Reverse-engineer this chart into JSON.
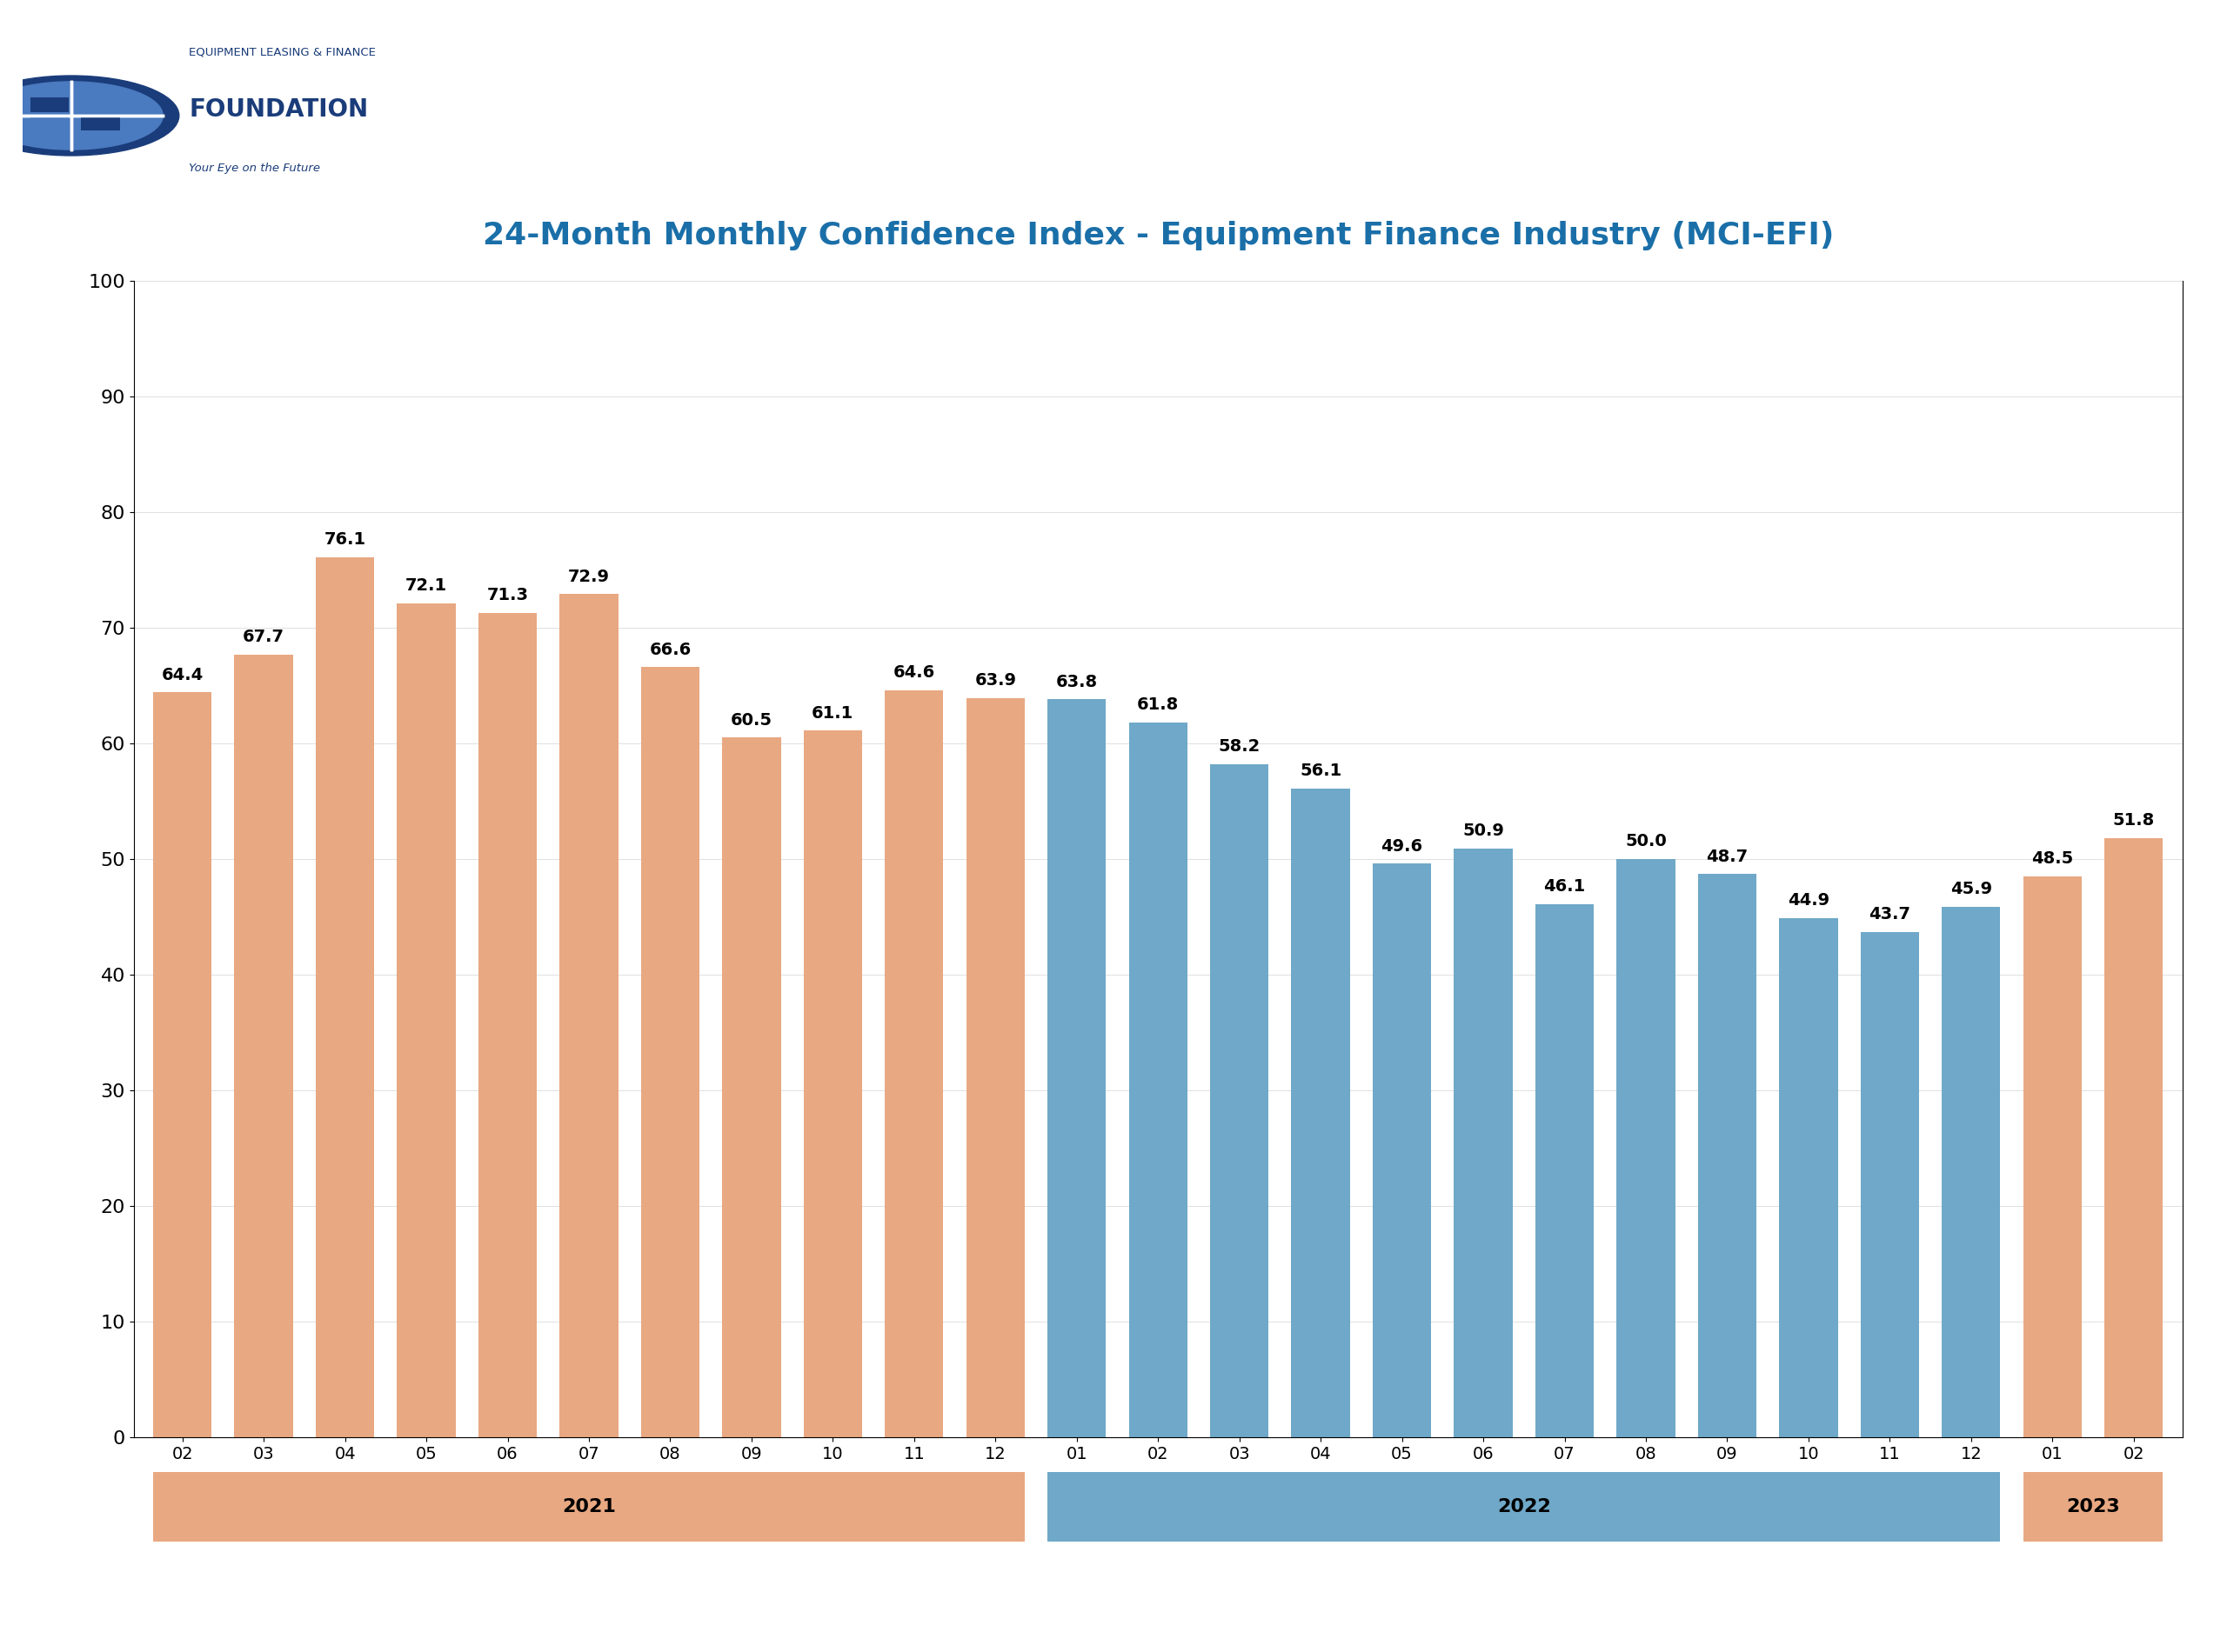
{
  "categories": [
    "02",
    "03",
    "04",
    "05",
    "06",
    "07",
    "08",
    "09",
    "10",
    "11",
    "12",
    "01",
    "02",
    "03",
    "04",
    "05",
    "06",
    "07",
    "08",
    "09",
    "10",
    "11",
    "12",
    "01",
    "02"
  ],
  "values": [
    64.4,
    67.7,
    76.1,
    72.1,
    71.3,
    72.9,
    66.6,
    60.5,
    61.1,
    64.6,
    63.9,
    63.8,
    61.8,
    58.2,
    56.1,
    49.6,
    50.9,
    46.1,
    50.0,
    48.7,
    44.9,
    43.7,
    45.9,
    48.5,
    51.8
  ],
  "bar_colors_salmon": "#E8A882",
  "bar_colors_blue": "#6FA8C8",
  "title": "24-Month Monthly Confidence Index - Equipment Finance Industry (MCI-EFI)",
  "title_color": "#1a6fa8",
  "ylim": [
    0,
    100
  ],
  "yticks": [
    0,
    10,
    20,
    30,
    40,
    50,
    60,
    70,
    80,
    90,
    100
  ],
  "background_color": "#ffffff",
  "salmon_indices": [
    0,
    1,
    2,
    3,
    4,
    5,
    6,
    7,
    8,
    9,
    10,
    23,
    24
  ],
  "blue_indices": [
    11,
    12,
    13,
    14,
    15,
    16,
    17,
    18,
    19,
    20,
    21,
    22
  ],
  "year_info": [
    {
      "label": "2021",
      "start": 0,
      "end": 10,
      "color": "#E8A882"
    },
    {
      "label": "2022",
      "start": 11,
      "end": 22,
      "color": "#6FA8C8"
    },
    {
      "label": "2023",
      "start": 23,
      "end": 24,
      "color": "#E8A882"
    }
  ],
  "logo_text1": "EQUIPMENT LEASING & FINANCE",
  "logo_text2": "FOUNDATION",
  "logo_text3": "Your Eye on the Future",
  "logo_color": "#1a3c7a",
  "globe_color1": "#1a3c7a",
  "globe_color2": "#4a7abf"
}
